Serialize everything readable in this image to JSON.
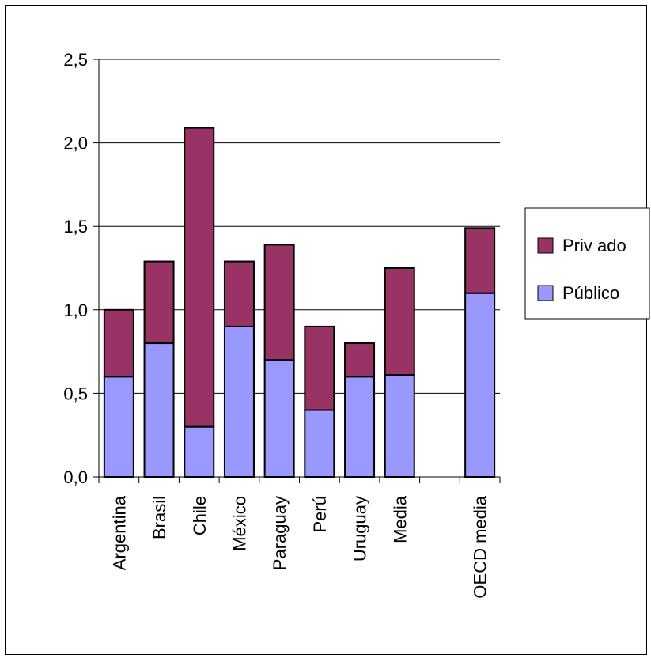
{
  "chart_data": {
    "type": "bar",
    "stacked": true,
    "categories": [
      "Argentina",
      "Brasil",
      "Chile",
      "México",
      "Paraguay",
      "Perú",
      "Uruguay",
      "Media",
      "",
      "OECD media"
    ],
    "series": [
      {
        "name": "Público",
        "color": "#9999ff",
        "values": [
          0.6,
          0.8,
          0.3,
          0.9,
          0.7,
          0.4,
          0.6,
          0.61,
          null,
          1.1
        ]
      },
      {
        "name": "Privado",
        "color": "#993366",
        "values": [
          0.4,
          0.49,
          1.79,
          0.39,
          0.69,
          0.5,
          0.2,
          0.64,
          null,
          0.39
        ]
      }
    ],
    "yticks": [
      "0,0",
      "0,5",
      "1,0",
      "1,5",
      "2,0",
      "2,5"
    ],
    "ylim": [
      0,
      2.5
    ],
    "grid": true,
    "legend": {
      "position": "right",
      "entries": [
        "Privado",
        "Público"
      ],
      "labels": [
        "Priv ado",
        "Público"
      ]
    }
  }
}
